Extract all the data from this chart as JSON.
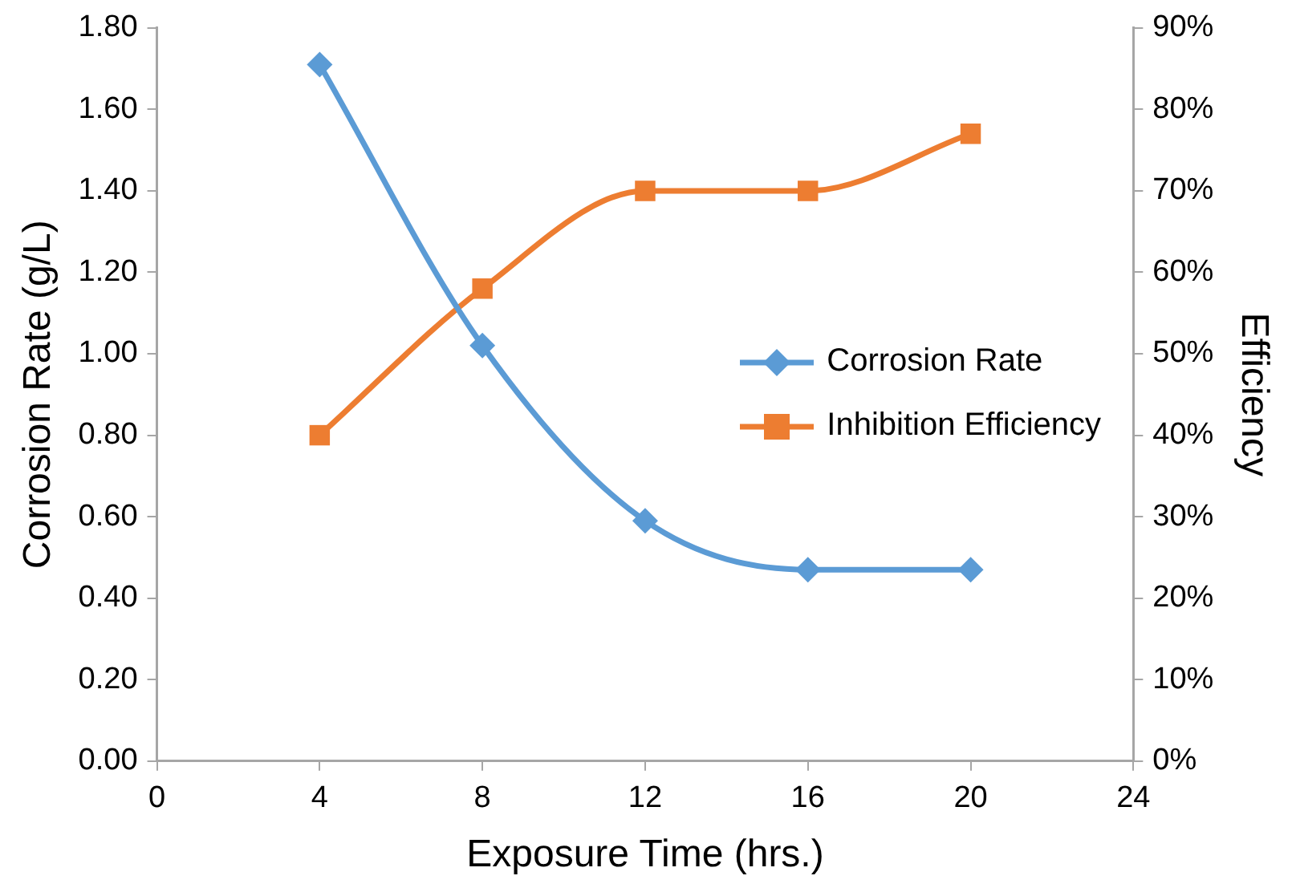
{
  "chart_data": {
    "type": "line",
    "xlabel": "Exposure Time (hrs.)",
    "ylabel": "Corrosion Rate (g/L)",
    "y2label": "Efficiency",
    "x": [
      4,
      8,
      12,
      16,
      20
    ],
    "series": [
      {
        "name": "Corrosion Rate",
        "color": "#5b9bd5",
        "marker": "diamond",
        "values": [
          1.71,
          1.02,
          0.59,
          0.47,
          0.47
        ]
      },
      {
        "name": "Inhibition Efficiency",
        "color": "#ed7d31",
        "marker": "square",
        "axis": "y2",
        "values": [
          40,
          58,
          70,
          70,
          77
        ]
      }
    ],
    "xlim": [
      0,
      24
    ],
    "xticks": [
      0,
      4,
      8,
      12,
      16,
      20,
      24
    ],
    "ylim": [
      0,
      1.8
    ],
    "yticks": [
      {
        "value": 0,
        "label": "0.00"
      },
      {
        "value": 0.2,
        "label": "0.20"
      },
      {
        "value": 0.4,
        "label": "0.40"
      },
      {
        "value": 0.6,
        "label": "0.60"
      },
      {
        "value": 0.8,
        "label": "0.80"
      },
      {
        "value": 1,
        "label": "1.00"
      },
      {
        "value": 1.2,
        "label": "1.20"
      },
      {
        "value": 1.4,
        "label": "1.40"
      },
      {
        "value": 1.6,
        "label": "1.60"
      },
      {
        "value": 1.8,
        "label": "1.80"
      }
    ],
    "y2lim": [
      0,
      90
    ],
    "y2ticks": [
      {
        "value": 0,
        "label": "0%"
      },
      {
        "value": 10,
        "label": "10%"
      },
      {
        "value": 20,
        "label": "20%"
      },
      {
        "value": 30,
        "label": "30%"
      },
      {
        "value": 40,
        "label": "40%"
      },
      {
        "value": 50,
        "label": "50%"
      },
      {
        "value": 60,
        "label": "60%"
      },
      {
        "value": 70,
        "label": "70%"
      },
      {
        "value": 80,
        "label": "80%"
      },
      {
        "value": 90,
        "label": "90%"
      }
    ],
    "grid": false,
    "legend": "right",
    "line_style": "solid"
  }
}
